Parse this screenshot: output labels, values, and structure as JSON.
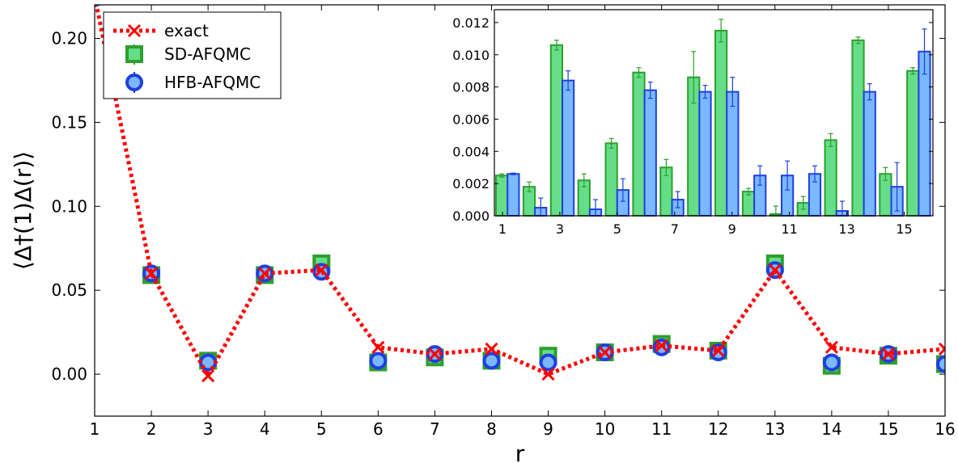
{
  "chart_data": [
    {
      "type": "line",
      "xlabel": "r",
      "ylabel": "⟨Δ†(1)Δ(r)⟩",
      "xlim": [
        1,
        16
      ],
      "ylim": [
        -0.025,
        0.22
      ],
      "xticks": [
        "1",
        "2",
        "3",
        "4",
        "5",
        "6",
        "7",
        "8",
        "9",
        "10",
        "11",
        "12",
        "13",
        "14",
        "15",
        "16"
      ],
      "yticks": [
        "0.00",
        "0.05",
        "0.10",
        "0.15",
        "0.20"
      ],
      "legend_placement": "top-left",
      "grid": false,
      "x": [
        1,
        2,
        3,
        4,
        5,
        6,
        7,
        8,
        9,
        10,
        11,
        12,
        13,
        14,
        15,
        16
      ],
      "series": [
        {
          "name": "exact",
          "color": "#ff0000",
          "marker": "x",
          "linestyle": "dotted",
          "values": [
            0.225,
            0.06,
            -0.001,
            0.06,
            0.062,
            0.016,
            0.012,
            0.015,
            0.0,
            0.013,
            0.017,
            0.014,
            0.062,
            0.016,
            0.012,
            0.015
          ]
        },
        {
          "name": "SD-AFQMC",
          "color": "#2ca02c",
          "fill": "#66dd88",
          "marker": "square",
          "values": [
            0.225,
            0.059,
            0.008,
            0.059,
            0.066,
            0.007,
            0.01,
            0.008,
            0.011,
            0.013,
            0.018,
            0.014,
            0.066,
            0.005,
            0.011,
            0.006
          ]
        },
        {
          "name": "HFB-AFQMC",
          "color": "#1f3fe0",
          "fill": "#7ab8ff",
          "marker": "circle",
          "values": [
            0.224,
            0.06,
            0.007,
            0.06,
            0.061,
            0.008,
            0.012,
            0.008,
            0.007,
            0.013,
            0.016,
            0.013,
            0.062,
            0.007,
            0.012,
            0.006
          ]
        }
      ]
    },
    {
      "type": "bar",
      "subtitle": "inset",
      "xticks": [
        "1",
        "3",
        "5",
        "7",
        "9",
        "11",
        "13",
        "15"
      ],
      "yticks": [
        "0.000",
        "0.002",
        "0.004",
        "0.006",
        "0.008",
        "0.010",
        "0.012"
      ],
      "ylim": [
        0,
        0.0128
      ],
      "xlim": [
        1,
        16
      ],
      "categories": [
        1,
        2,
        3,
        4,
        5,
        6,
        7,
        8,
        9,
        10,
        11,
        12,
        13,
        14,
        15,
        16
      ],
      "series": [
        {
          "name": "SD-AFQMC",
          "color": "#2ca02c",
          "fill": "#66dd88",
          "values": [
            0.0025,
            0.0018,
            0.0106,
            0.0022,
            0.0045,
            0.0089,
            0.003,
            0.0086,
            0.0115,
            0.0015,
            0.0001,
            0.0008,
            0.0047,
            0.0109,
            0.0026,
            0.009
          ],
          "errors": [
            0.0001,
            0.0003,
            0.0003,
            0.0004,
            0.0003,
            0.0003,
            0.0005,
            0.0016,
            0.0007,
            0.0002,
            0.0005,
            0.0004,
            0.0004,
            0.0002,
            0.0004,
            0.0002
          ]
        },
        {
          "name": "HFB-AFQMC",
          "color": "#1f3fe0",
          "fill": "#7ab8ff",
          "values": [
            0.0026,
            0.0005,
            0.0084,
            0.0004,
            0.0016,
            0.0078,
            0.001,
            0.0077,
            0.0077,
            0.0025,
            0.0025,
            0.0026,
            0.0003,
            0.0077,
            0.0018,
            0.0102
          ],
          "errors": [
            5e-05,
            0.0006,
            0.0006,
            0.0006,
            0.0007,
            0.0005,
            0.0005,
            0.0004,
            0.0009,
            0.0006,
            0.0009,
            0.0005,
            0.0006,
            0.0005,
            0.0015,
            0.0014
          ]
        }
      ]
    }
  ]
}
